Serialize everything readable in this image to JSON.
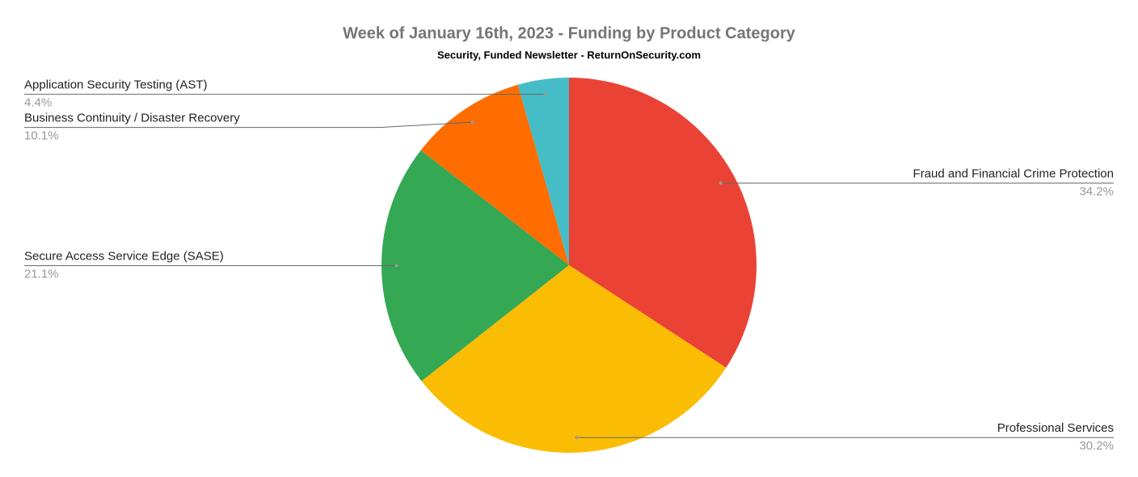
{
  "chart_data": {
    "type": "pie",
    "title": "Week of January 16th, 2023 - Funding by Product Category",
    "subtitle": "Security, Funded Newsletter - ReturnOnSecurity.com",
    "categories": [
      "Fraud and Financial Crime Protection",
      "Professional Services",
      "Secure Access Service Edge (SASE)",
      "Business Continuity / Disaster Recovery",
      "Application Security Testing (AST)"
    ],
    "values": [
      34.2,
      30.2,
      21.1,
      10.1,
      4.4
    ],
    "value_labels": [
      "34.2%",
      "30.2%",
      "21.1%",
      "10.1%",
      "4.4%"
    ],
    "colors": [
      "#ea4335",
      "#fbbc04",
      "#34a853",
      "#ff6d01",
      "#46bdc6"
    ]
  }
}
